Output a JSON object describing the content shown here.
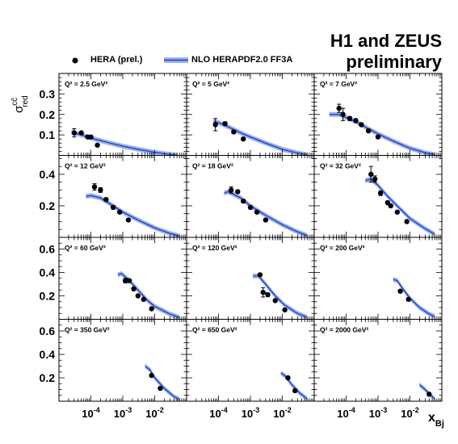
{
  "header": {
    "title_line1": "H1 and ZEUS",
    "title_line2": "preliminary"
  },
  "legend": {
    "data_label": "HERA (prel.)",
    "theory_label": "NLO HERAPDF2.0 FF3A"
  },
  "colors": {
    "band_fill": "#9db4e6",
    "curve": "#1f3fd8",
    "marker": "#000000"
  },
  "chart_data": {
    "type": "scatter",
    "ylabel": "σ^{cc̄}_{red}",
    "xlabel": "x_Bj",
    "x_scale": "log",
    "x_range": [
      1e-05,
      0.1
    ],
    "x_tick_labels": [
      "10^-4",
      "10^-3",
      "10^-2"
    ],
    "grid": false,
    "legend_position": "top-left",
    "row_ylim": [
      [
        0,
        0.4
      ],
      [
        0,
        0.52
      ],
      [
        0,
        0.7
      ],
      [
        0,
        0.7
      ]
    ],
    "row_yticks": [
      [
        0.1,
        0.2,
        0.3
      ],
      [
        0.2,
        0.4
      ],
      [
        0.2,
        0.4,
        0.6
      ],
      [
        0.2,
        0.4,
        0.6
      ]
    ],
    "panels": [
      {
        "label": "Q² = 2.5 GeV²",
        "points": [
          {
            "x": 3e-05,
            "y": 0.11,
            "err": 0.02
          },
          {
            "x": 5e-05,
            "y": 0.11,
            "err": 0.005
          },
          {
            "x": 8e-05,
            "y": 0.09,
            "err": 0.005
          },
          {
            "x": 0.0001,
            "y": 0.09,
            "err": 0.005
          },
          {
            "x": 0.00016,
            "y": 0.05,
            "err": 0.005
          }
        ],
        "curve": [
          [
            2.5e-05,
            0.115
          ],
          [
            3e-05,
            0.11
          ],
          [
            5e-05,
            0.1
          ],
          [
            0.0001,
            0.085
          ],
          [
            0.0003,
            0.065
          ],
          [
            0.001,
            0.045
          ],
          [
            0.003,
            0.03
          ],
          [
            0.01,
            0.015
          ],
          [
            0.03,
            0.005
          ],
          [
            0.05,
            0.001
          ]
        ]
      },
      {
        "label": "Q² = 5 GeV²",
        "points": [
          {
            "x": 8e-05,
            "y": 0.15,
            "err": 0.03
          },
          {
            "x": 0.00016,
            "y": 0.155,
            "err": 0.008
          },
          {
            "x": 0.0003,
            "y": 0.115,
            "err": 0.008
          },
          {
            "x": 0.0006,
            "y": 0.08,
            "err": 0.006
          }
        ],
        "curve": [
          [
            7e-05,
            0.165
          ],
          [
            0.0001,
            0.16
          ],
          [
            0.0002,
            0.14
          ],
          [
            0.0005,
            0.11
          ],
          [
            0.001,
            0.09
          ],
          [
            0.003,
            0.06
          ],
          [
            0.01,
            0.03
          ],
          [
            0.03,
            0.012
          ],
          [
            0.06,
            0.003
          ]
        ]
      },
      {
        "label": "Q² = 7 GeV²",
        "points": [
          {
            "x": 6e-05,
            "y": 0.23,
            "err": 0.02
          },
          {
            "x": 8e-05,
            "y": 0.2,
            "err": 0.03
          },
          {
            "x": 0.00013,
            "y": 0.18,
            "err": 0.01
          },
          {
            "x": 0.0002,
            "y": 0.17,
            "err": 0.008
          },
          {
            "x": 0.0003,
            "y": 0.15,
            "err": 0.008
          },
          {
            "x": 0.0005,
            "y": 0.12,
            "err": 0.008
          },
          {
            "x": 0.001,
            "y": 0.09,
            "err": 0.006
          }
        ],
        "curve": [
          [
            3e-05,
            0.2
          ],
          [
            6e-05,
            0.2
          ],
          [
            0.0001,
            0.185
          ],
          [
            0.0002,
            0.165
          ],
          [
            0.0005,
            0.13
          ],
          [
            0.001,
            0.105
          ],
          [
            0.003,
            0.07
          ],
          [
            0.01,
            0.035
          ],
          [
            0.03,
            0.013
          ],
          [
            0.06,
            0.004
          ]
        ]
      },
      {
        "label": "Q² = 12 GeV²",
        "points": [
          {
            "x": 0.00013,
            "y": 0.32,
            "err": 0.02
          },
          {
            "x": 0.0002,
            "y": 0.3,
            "err": 0.015
          },
          {
            "x": 0.0003,
            "y": 0.24,
            "err": 0.01
          },
          {
            "x": 0.0005,
            "y": 0.19,
            "err": 0.01
          },
          {
            "x": 0.0008,
            "y": 0.16,
            "err": 0.008
          },
          {
            "x": 0.0015,
            "y": 0.11,
            "err": 0.008
          }
        ],
        "curve": [
          [
            7e-05,
            0.26
          ],
          [
            0.0001,
            0.265
          ],
          [
            0.0002,
            0.25
          ],
          [
            0.0005,
            0.2
          ],
          [
            0.001,
            0.16
          ],
          [
            0.003,
            0.11
          ],
          [
            0.01,
            0.06
          ],
          [
            0.03,
            0.025
          ],
          [
            0.06,
            0.008
          ]
        ]
      },
      {
        "label": "Q² = 18 GeV²",
        "points": [
          {
            "x": 0.00025,
            "y": 0.3,
            "err": 0.02
          },
          {
            "x": 0.0004,
            "y": 0.29,
            "err": 0.01
          },
          {
            "x": 0.0006,
            "y": 0.23,
            "err": 0.01
          },
          {
            "x": 0.001,
            "y": 0.19,
            "err": 0.01
          },
          {
            "x": 0.0016,
            "y": 0.16,
            "err": 0.008
          },
          {
            "x": 0.003,
            "y": 0.11,
            "err": 0.008
          }
        ],
        "curve": [
          [
            0.00015,
            0.28
          ],
          [
            0.0002,
            0.29
          ],
          [
            0.0005,
            0.25
          ],
          [
            0.001,
            0.2
          ],
          [
            0.003,
            0.14
          ],
          [
            0.01,
            0.08
          ],
          [
            0.03,
            0.035
          ],
          [
            0.06,
            0.012
          ]
        ]
      },
      {
        "label": "Q² = 32 GeV²",
        "points": [
          {
            "x": 0.0006,
            "y": 0.4,
            "err": 0.05
          },
          {
            "x": 0.0008,
            "y": 0.37,
            "err": 0.02
          },
          {
            "x": 0.0012,
            "y": 0.28,
            "err": 0.015
          },
          {
            "x": 0.002,
            "y": 0.22,
            "err": 0.01
          },
          {
            "x": 0.0025,
            "y": 0.2,
            "err": 0.01
          },
          {
            "x": 0.004,
            "y": 0.16,
            "err": 0.008
          },
          {
            "x": 0.008,
            "y": 0.1,
            "err": 0.008
          }
        ],
        "curve": [
          [
            0.0004,
            0.36
          ],
          [
            0.0006,
            0.37
          ],
          [
            0.001,
            0.33
          ],
          [
            0.002,
            0.26
          ],
          [
            0.005,
            0.18
          ],
          [
            0.01,
            0.12
          ],
          [
            0.03,
            0.055
          ],
          [
            0.06,
            0.02
          ]
        ]
      },
      {
        "label": "Q² = 60 GeV²",
        "points": [
          {
            "x": 0.0012,
            "y": 0.33,
            "err": 0.02
          },
          {
            "x": 0.0016,
            "y": 0.33,
            "err": 0.015
          },
          {
            "x": 0.0022,
            "y": 0.26,
            "err": 0.012
          },
          {
            "x": 0.003,
            "y": 0.2,
            "err": 0.01
          },
          {
            "x": 0.0045,
            "y": 0.17,
            "err": 0.01
          },
          {
            "x": 0.008,
            "y": 0.09,
            "err": 0.008
          }
        ],
        "curve": [
          [
            0.0007,
            0.38
          ],
          [
            0.0009,
            0.39
          ],
          [
            0.0015,
            0.34
          ],
          [
            0.003,
            0.25
          ],
          [
            0.006,
            0.16
          ],
          [
            0.01,
            0.11
          ],
          [
            0.03,
            0.045
          ],
          [
            0.06,
            0.015
          ]
        ]
      },
      {
        "label": "Q² = 120 GeV²",
        "points": [
          {
            "x": 0.002,
            "y": 0.38,
            "err": 0.01
          },
          {
            "x": 0.0025,
            "y": 0.23,
            "err": 0.04
          },
          {
            "x": 0.0035,
            "y": 0.21,
            "err": 0.015
          },
          {
            "x": 0.006,
            "y": 0.16,
            "err": 0.01
          },
          {
            "x": 0.012,
            "y": 0.08,
            "err": 0.008
          }
        ],
        "curve": [
          [
            0.0012,
            0.37
          ],
          [
            0.0018,
            0.37
          ],
          [
            0.003,
            0.3
          ],
          [
            0.006,
            0.2
          ],
          [
            0.012,
            0.12
          ],
          [
            0.03,
            0.05
          ],
          [
            0.06,
            0.018
          ]
        ]
      },
      {
        "label": "Q² = 200 GeV²",
        "points": [
          {
            "x": 0.005,
            "y": 0.24,
            "err": 0.01
          },
          {
            "x": 0.009,
            "y": 0.17,
            "err": 0.01
          }
        ],
        "curve": [
          [
            0.003,
            0.34
          ],
          [
            0.004,
            0.33
          ],
          [
            0.006,
            0.26
          ],
          [
            0.01,
            0.18
          ],
          [
            0.02,
            0.1
          ],
          [
            0.04,
            0.045
          ],
          [
            0.06,
            0.025
          ]
        ]
      },
      {
        "label": "Q² = 350 GeV²",
        "points": [
          {
            "x": 0.008,
            "y": 0.22,
            "err": 0.01
          },
          {
            "x": 0.015,
            "y": 0.11,
            "err": 0.01
          }
        ],
        "curve": [
          [
            0.005,
            0.3
          ],
          [
            0.007,
            0.27
          ],
          [
            0.01,
            0.2
          ],
          [
            0.02,
            0.11
          ],
          [
            0.04,
            0.04
          ],
          [
            0.06,
            0.015
          ]
        ]
      },
      {
        "label": "Q² = 650 GeV²",
        "points": [
          {
            "x": 0.015,
            "y": 0.2,
            "err": 0.01
          },
          {
            "x": 0.025,
            "y": 0.09,
            "err": 0.01
          }
        ],
        "curve": [
          [
            0.009,
            0.24
          ],
          [
            0.012,
            0.22
          ],
          [
            0.02,
            0.14
          ],
          [
            0.035,
            0.07
          ],
          [
            0.06,
            0.02
          ]
        ]
      },
      {
        "label": "Q² = 2000 GeV²",
        "points": [
          {
            "x": 0.04,
            "y": 0.06,
            "err": 0.008
          }
        ],
        "curve": [
          [
            0.02,
            0.14
          ],
          [
            0.03,
            0.1
          ],
          [
            0.045,
            0.05
          ],
          [
            0.06,
            0.02
          ]
        ]
      }
    ]
  }
}
